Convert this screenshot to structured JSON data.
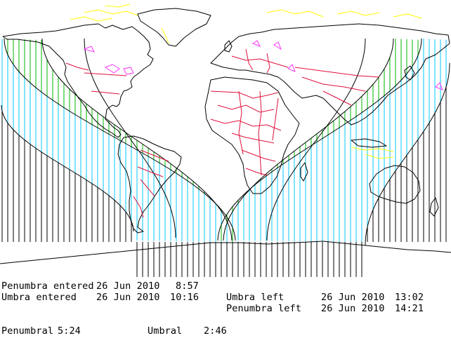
{
  "eclipse": {
    "penumbra_entered": {
      "label": "Penumbra entered",
      "date": "26 Jun 2010",
      "time": "8:57"
    },
    "umbra_entered": {
      "label": "Umbra entered",
      "date": "26 Jun 2010",
      "time": "10:16"
    },
    "umbra_left": {
      "label": "Umbra left",
      "date": "26 Jun 2010",
      "time": "13:02"
    },
    "penumbra_left": {
      "label": "Penumbra left",
      "date": "26 Jun 2010",
      "time": "14:21"
    },
    "penumbral_duration": {
      "label": "Penumbral",
      "value": "5:24"
    },
    "umbral_duration": {
      "label": "Umbral",
      "value": "2:46"
    }
  },
  "colors": {
    "background": "#ffffff",
    "coastline": "#000000",
    "borders": "#e0103c",
    "sea_ice": "#ffff00",
    "lakes": "#ff33ff",
    "not_visible_hatch": "#000000",
    "penumbral_hatch": "#00c8ff",
    "umbral_hatch": "#00b400"
  }
}
